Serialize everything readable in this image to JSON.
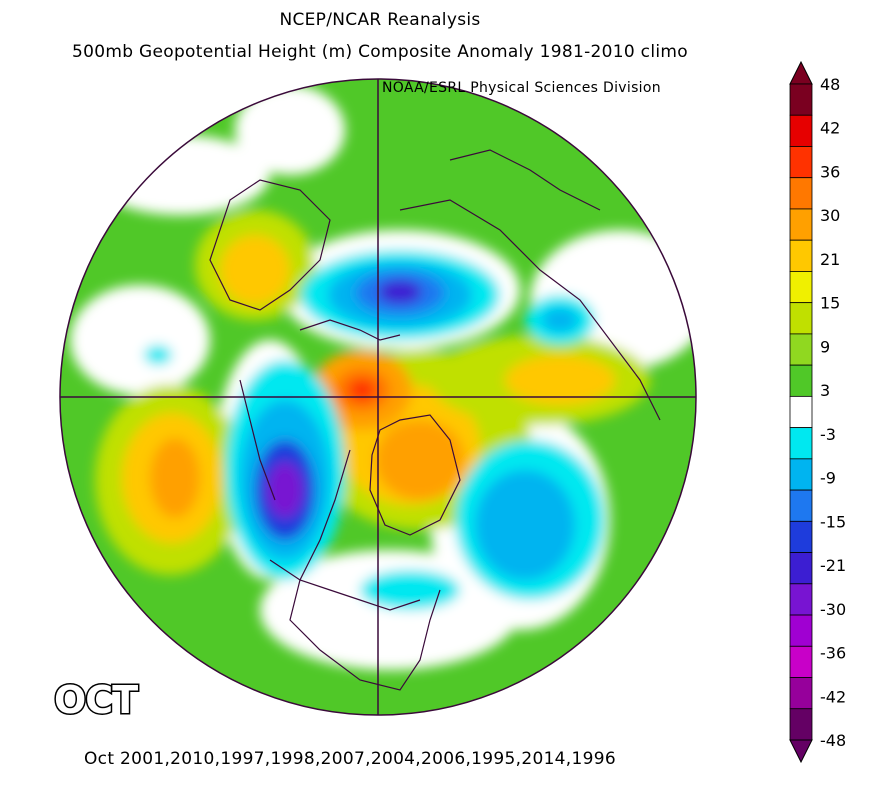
{
  "title_line1": "NCEP/NCAR Reanalysis",
  "title_line2": "500mb Geopotential Height (m) Composite Anomaly 1981-2010 climo",
  "credit": "NOAA/ESRL Physical Sciences Division",
  "month_label": "OCT",
  "years_label": "Oct 2001,2010,1997,1998,2007,2004,2006,1995,2014,1996",
  "map": {
    "projection": "north-polar-stereographic",
    "background_color": "#ffffff",
    "coastline_color": "#3a0a3a"
  },
  "colorbar": {
    "levels": [
      "48",
      "42",
      "36",
      "30",
      "21",
      "15",
      "9",
      "3",
      "-3",
      "-9",
      "-15",
      "-21",
      "-30",
      "-36",
      "-42",
      "-48"
    ],
    "colors": [
      "#7a0020",
      "#e60000",
      "#ff3200",
      "#ff7800",
      "#ffa000",
      "#ffc800",
      "#f0f000",
      "#c0e000",
      "#90d820",
      "#50c828",
      "#ffffff",
      "#00e8f0",
      "#00b4f0",
      "#1e78f0",
      "#1e3cdc",
      "#3c1ed2",
      "#7814d2",
      "#a000d2",
      "#c800c8",
      "#96009b",
      "#640064"
    ]
  }
}
